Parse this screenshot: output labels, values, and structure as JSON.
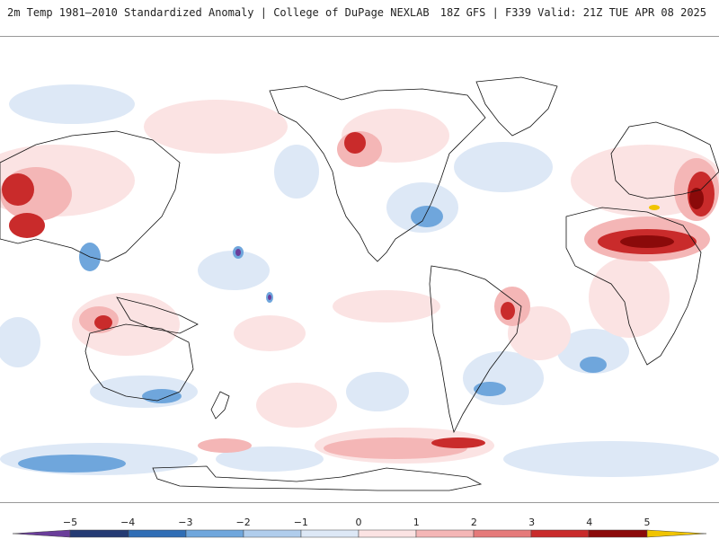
{
  "header": {
    "title": "2m Temp 1981–2010 Standardized Anomaly | College of DuPage NEXLAB",
    "run_info": "18Z GFS | F339 Valid: 21Z TUE APR 08 2025"
  },
  "legend": {
    "ticks": [
      {
        "value": -5,
        "label": "−5"
      },
      {
        "value": -4,
        "label": "−4"
      },
      {
        "value": -3,
        "label": "−3"
      },
      {
        "value": -2,
        "label": "−2"
      },
      {
        "value": -1,
        "label": "−1"
      },
      {
        "value": 0,
        "label": "0"
      },
      {
        "value": 1,
        "label": "1"
      },
      {
        "value": 2,
        "label": "2"
      },
      {
        "value": 3,
        "label": "3"
      },
      {
        "value": 4,
        "label": "4"
      },
      {
        "value": 5,
        "label": "5"
      }
    ],
    "colors": {
      "lt_m5": "#6a3d9a",
      "m5_m4": "#243a73",
      "m4_m3": "#2f6db5",
      "m3_m2": "#6fa6dc",
      "m2_m1": "#b0cdec",
      "m1_0": "#dde8f6",
      "0_1": "#fbe3e3",
      "1_2": "#f4b6b6",
      "2_3": "#e57a7a",
      "3_4": "#c92b2b",
      "4_5": "#8b0a0a",
      "gt_5": "#f0c400"
    }
  }
}
